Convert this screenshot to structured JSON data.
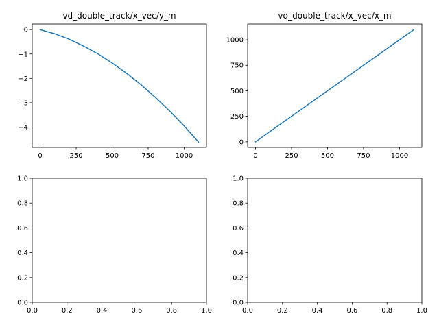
{
  "chart_data": [
    {
      "type": "line",
      "title": "vd_double_track/x_vec/y_m",
      "xlabel": "",
      "ylabel": "",
      "xlim": [
        -55,
        1155
      ],
      "ylim": [
        -4.83,
        0.23
      ],
      "xticks": [
        0,
        250,
        500,
        750,
        1000
      ],
      "xtick_labels": [
        "0",
        "250",
        "500",
        "750",
        "1000"
      ],
      "yticks": [
        0,
        -1,
        -2,
        -3,
        -4
      ],
      "ytick_labels": [
        "0",
        "−1",
        "−2",
        "−3",
        "−4"
      ],
      "grid": false,
      "color": "#1f77b4",
      "x": [
        0,
        100,
        200,
        300,
        400,
        500,
        600,
        700,
        800,
        900,
        1000,
        1100
      ],
      "y": [
        0,
        -0.17,
        -0.39,
        -0.67,
        -0.99,
        -1.37,
        -1.79,
        -2.26,
        -2.78,
        -3.34,
        -3.95,
        -4.61
      ]
    },
    {
      "type": "line",
      "title": "vd_double_track/x_vec/x_m",
      "xlabel": "",
      "ylabel": "",
      "xlim": [
        -55,
        1155
      ],
      "ylim": [
        -55,
        1155
      ],
      "xticks": [
        0,
        250,
        500,
        750,
        1000
      ],
      "xtick_labels": [
        "0",
        "250",
        "500",
        "750",
        "1000"
      ],
      "yticks": [
        0,
        250,
        500,
        750,
        1000
      ],
      "ytick_labels": [
        "0",
        "250",
        "500",
        "750",
        "1000"
      ],
      "grid": false,
      "color": "#1f77b4",
      "x": [
        0,
        1100
      ],
      "y": [
        0,
        1100
      ]
    },
    {
      "type": "line",
      "title": "",
      "xlabel": "",
      "ylabel": "",
      "xlim": [
        0,
        1
      ],
      "ylim": [
        0,
        1
      ],
      "xticks": [
        0,
        0.2,
        0.4,
        0.6,
        0.8,
        1
      ],
      "xtick_labels": [
        "0.0",
        "0.2",
        "0.4",
        "0.6",
        "0.8",
        "1.0"
      ],
      "yticks": [
        0,
        0.2,
        0.4,
        0.6,
        0.8,
        1
      ],
      "ytick_labels": [
        "0.0",
        "0.2",
        "0.4",
        "0.6",
        "0.8",
        "1.0"
      ],
      "grid": false,
      "color": "#1f77b4",
      "x": [],
      "y": []
    },
    {
      "type": "line",
      "title": "",
      "xlabel": "",
      "ylabel": "",
      "xlim": [
        0,
        1
      ],
      "ylim": [
        0,
        1
      ],
      "xticks": [
        0,
        0.2,
        0.4,
        0.6,
        0.8,
        1
      ],
      "xtick_labels": [
        "0.0",
        "0.2",
        "0.4",
        "0.6",
        "0.8",
        "1.0"
      ],
      "yticks": [
        0,
        0.2,
        0.4,
        0.6,
        0.8,
        1
      ],
      "ytick_labels": [
        "0.0",
        "0.2",
        "0.4",
        "0.6",
        "0.8",
        "1.0"
      ],
      "grid": false,
      "color": "#1f77b4",
      "x": [],
      "y": []
    }
  ]
}
